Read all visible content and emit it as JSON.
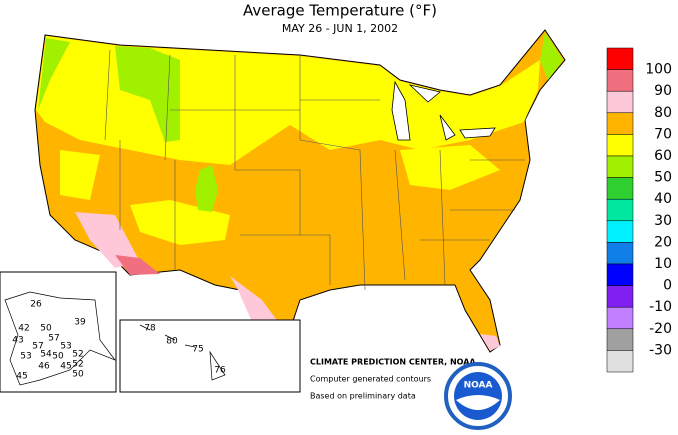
{
  "header": {
    "title": "Average Temperature (°F)",
    "subtitle": "MAY 26 - JUN  1, 2002"
  },
  "legend": {
    "labels": [
      100,
      90,
      80,
      70,
      60,
      50,
      40,
      30,
      20,
      10,
      0,
      -10,
      -20,
      -30
    ],
    "colors": [
      "#ff0000",
      "#f07080",
      "#ffc8d8",
      "#ffb400",
      "#ffff00",
      "#a0f000",
      "#30d030",
      "#00e8a0",
      "#00f0ff",
      "#1080e8",
      "#0000ff",
      "#8020f0",
      "#c080ff",
      "#a0a0a0",
      "#e0e0e0"
    ]
  },
  "alaska": [
    "26",
    "39",
    "42",
    "50",
    "57",
    "53",
    "43",
    "57",
    "54",
    "50",
    "52",
    "53",
    "46",
    "45",
    "52",
    "45",
    "50"
  ],
  "hawaii": [
    "78",
    "80",
    "75",
    "76"
  ],
  "credits": {
    "center": "CLIMATE PREDICTION CENTER, NOAA",
    "line1": "Computer generated contours",
    "line2": "Based on preliminary data",
    "logo": "NOAA"
  }
}
